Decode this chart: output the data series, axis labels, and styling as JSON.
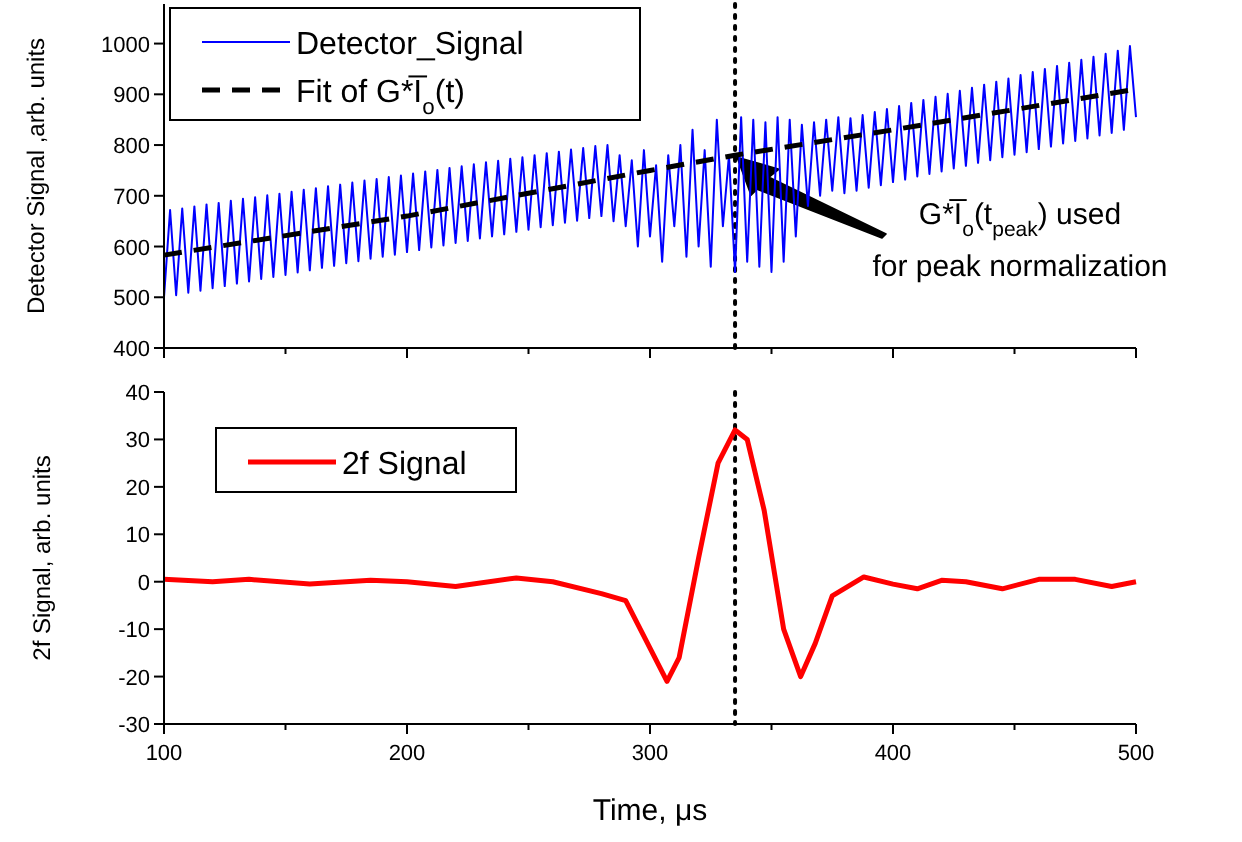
{
  "chart_data": [
    {
      "type": "line",
      "ylabel": "Detector Signal ,arb. units",
      "xlim": [
        100,
        500
      ],
      "ylim": [
        400,
        1078
      ],
      "xticks": [
        100,
        {
          "value": 150,
          "label": null
        },
        200,
        {
          "value": 250,
          "label": null
        },
        300,
        {
          "value": 350,
          "label": null
        },
        400,
        {
          "value": 450,
          "label": null
        },
        500
      ],
      "yticks": [
        400,
        500,
        600,
        700,
        800,
        900,
        1000
      ],
      "tick_labels": "y",
      "legend": "top left",
      "grid": false,
      "series": [
        {
          "name": "Detector_Signal",
          "color": "#0000ff",
          "line_style": "solid",
          "x": [
            100,
            102.5,
            105,
            107.5,
            110,
            112.5,
            115,
            117.5,
            120,
            122.5,
            125,
            127.5,
            130,
            132.5,
            135,
            137.5,
            140,
            142.5,
            145,
            147.5,
            150,
            152.5,
            155,
            157.5,
            160,
            162.5,
            165,
            167.5,
            170,
            172.5,
            175,
            177.5,
            180,
            182.5,
            185,
            187.5,
            190,
            192.5,
            195,
            197.5,
            200,
            202.5,
            205,
            207.5,
            210,
            212.5,
            215,
            217.5,
            220,
            222.5,
            225,
            227.5,
            230,
            232.5,
            235,
            237.5,
            240,
            242.5,
            245,
            247.5,
            250,
            252.5,
            255,
            257.5,
            260,
            262.5,
            265,
            267.5,
            270,
            272.5,
            275,
            277.5,
            280,
            282.5,
            285,
            287.5,
            290,
            292.5,
            295,
            297.5,
            300,
            302.5,
            305,
            307.5,
            310,
            312.5,
            315,
            317.5,
            320,
            322.5,
            325,
            327.5,
            330,
            332.5,
            335,
            337.5,
            340,
            342.5,
            345,
            347.5,
            350,
            352.5,
            355,
            357.5,
            360,
            362.5,
            365,
            367.5,
            370,
            372.5,
            375,
            377.5,
            380,
            382.5,
            385,
            387.5,
            390,
            392.5,
            395,
            397.5,
            400,
            402.5,
            405,
            407.5,
            410,
            412.5,
            415,
            417.5,
            420,
            422.5,
            425,
            427.5,
            430,
            432.5,
            435,
            437.5,
            440,
            442.5,
            445,
            447.5,
            450,
            452.5,
            455,
            457.5,
            460,
            462.5,
            465,
            467.5,
            470,
            472.5,
            475,
            477.5,
            480,
            482.5,
            485,
            487.5,
            490,
            492.5,
            495,
            497.5,
            500
          ],
          "values": [
            500,
            672,
            504,
            675,
            509,
            679,
            513,
            683,
            518,
            686,
            522,
            690,
            527,
            694,
            531,
            697,
            536,
            701,
            540,
            704,
            544,
            708,
            549,
            712,
            553,
            715,
            558,
            719,
            562,
            722,
            567,
            726,
            571,
            730,
            576,
            733,
            580,
            737,
            584,
            740,
            589,
            744,
            593,
            748,
            598,
            751,
            602,
            755,
            607,
            758,
            611,
            762,
            616,
            766,
            620,
            769,
            624,
            773,
            629,
            776,
            633,
            780,
            638,
            784,
            642,
            787,
            647,
            791,
            651,
            794,
            656,
            798,
            660,
            800,
            650,
            780,
            640,
            770,
            600,
            790,
            620,
            760,
            570,
            780,
            640,
            800,
            580,
            830,
            600,
            790,
            560,
            850,
            640,
            780,
            550,
            855,
            570,
            850,
            560,
            845,
            550,
            855,
            570,
            850,
            620,
            840,
            680,
            845,
            700,
            850,
            710,
            855,
            705,
            853,
            710,
            859,
            716,
            865,
            721,
            871,
            727,
            877,
            732,
            883,
            738,
            889,
            743,
            895,
            748,
            901,
            754,
            907,
            759,
            913,
            765,
            919,
            770,
            925,
            776,
            931,
            781,
            938,
            786,
            944,
            792,
            950,
            797,
            956,
            803,
            962,
            808,
            968,
            813,
            974,
            819,
            980,
            824,
            986,
            830,
            995,
            855
          ]
        },
        {
          "name": "Fit of G*I̅$_{o}$(t)",
          "color": "#000000",
          "line_style": "dashed",
          "x": [
            100,
            200,
            300,
            335,
            400,
            500
          ],
          "values": [
            583,
            660,
            750,
            780,
            830,
            910
          ]
        }
      ],
      "ref_lines": [
        {
          "axis": "x",
          "value": 335,
          "color": "#000000",
          "line_style": "dotted"
        }
      ],
      "annotations": [
        "G*I̅$_{o}$(t$_{peak}$) used\nfor peak normalization"
      ]
    },
    {
      "type": "line",
      "xlabel": "Time, μs",
      "ylabel": "2f Signal, arb. units",
      "xlim": [
        100,
        500
      ],
      "ylim": [
        -30,
        40
      ],
      "xticks": [
        100,
        {
          "value": 150,
          "label": null
        },
        200,
        {
          "value": 250,
          "label": null
        },
        300,
        {
          "value": 350,
          "label": null
        },
        400,
        {
          "value": 450,
          "label": null
        },
        500
      ],
      "yticks": [
        -30,
        -20,
        -10,
        0,
        10,
        20,
        30,
        40
      ],
      "legend": "top left",
      "grid": false,
      "series": [
        {
          "name": "2f Signal",
          "color": "#ff0000",
          "line_style": "solid",
          "x": [
            100,
            120,
            135,
            160,
            185,
            200,
            220,
            245,
            260,
            280,
            290,
            300,
            307,
            312,
            320,
            328,
            335,
            340,
            347,
            355,
            362,
            368,
            375,
            388,
            400,
            410,
            420,
            430,
            445,
            460,
            475,
            490,
            500
          ],
          "values": [
            0.5,
            0,
            0.5,
            -0.5,
            0.3,
            0,
            -1,
            0.8,
            0,
            -2.5,
            -4,
            -14,
            -21,
            -16,
            5,
            25,
            32,
            30,
            15,
            -10,
            -20,
            -13,
            -3,
            1,
            -0.5,
            -1.5,
            0.3,
            0,
            -1.5,
            0.5,
            0.5,
            -1,
            0
          ]
        }
      ],
      "ref_lines": [
        {
          "axis": "x",
          "value": 335,
          "color": "#000000",
          "line_style": "dotted"
        }
      ]
    }
  ]
}
